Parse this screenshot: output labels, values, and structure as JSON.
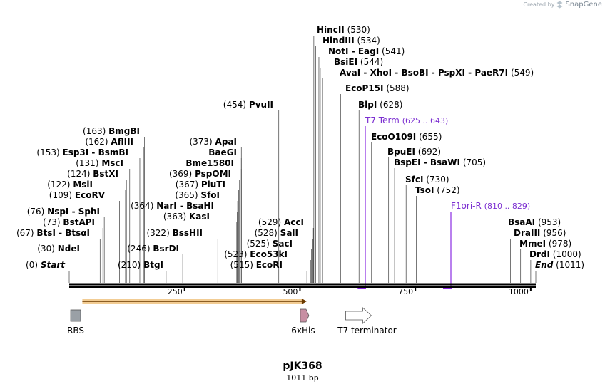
{
  "credit": {
    "prefix": "Created by",
    "brand": "SnapGene"
  },
  "plasmid": {
    "name": "pJK368",
    "length_label": "1011 bp",
    "length": 1011
  },
  "ruler": {
    "ticks": [
      {
        "pos": 250,
        "label": "250"
      },
      {
        "pos": 500,
        "label": "500"
      },
      {
        "pos": 750,
        "label": "750"
      },
      {
        "pos": 1000,
        "label": "1000"
      }
    ]
  },
  "sites": [
    {
      "pos": 0,
      "posLabel": "(0)",
      "names": [
        "Start"
      ],
      "style": "italic"
    },
    {
      "pos": 30,
      "posLabel": "(30)",
      "names": [
        "NdeI"
      ]
    },
    {
      "pos": 67,
      "posLabel": "(67)",
      "names": [
        "BtsI",
        "BtsαI"
      ]
    },
    {
      "pos": 73,
      "posLabel": "(73)",
      "names": [
        "BstAPI"
      ]
    },
    {
      "pos": 76,
      "posLabel": "(76)",
      "names": [
        "NspI",
        "SphI"
      ]
    },
    {
      "pos": 109,
      "posLabel": "(109)",
      "names": [
        "EcoRV"
      ]
    },
    {
      "pos": 122,
      "posLabel": "(122)",
      "names": [
        "MslI"
      ]
    },
    {
      "pos": 124,
      "posLabel": "(124)",
      "names": [
        "BstXI"
      ]
    },
    {
      "pos": 131,
      "posLabel": "(131)",
      "names": [
        "MscI"
      ]
    },
    {
      "pos": 153,
      "posLabel": "(153)",
      "names": [
        "Esp3I",
        "BsmBI"
      ]
    },
    {
      "pos": 162,
      "posLabel": "(162)",
      "names": [
        "AflIII"
      ]
    },
    {
      "pos": 163,
      "posLabel": "(163)",
      "names": [
        "BmgBI"
      ]
    },
    {
      "pos": 210,
      "posLabel": "(210)",
      "names": [
        "BtgI"
      ]
    },
    {
      "pos": 246,
      "posLabel": "(246)",
      "names": [
        "BsrDI"
      ]
    },
    {
      "pos": 322,
      "posLabel": "(322)",
      "names": [
        "BssHII"
      ]
    },
    {
      "pos": 363,
      "posLabel": "(363)",
      "names": [
        "KasI"
      ]
    },
    {
      "pos": 364,
      "posLabel": "(364)",
      "names": [
        "NarI",
        "BsaHI"
      ]
    },
    {
      "pos": 365,
      "posLabel": "(365)",
      "names": [
        "SfoI"
      ]
    },
    {
      "pos": 367,
      "posLabel": "(367)",
      "names": [
        "PluTI"
      ]
    },
    {
      "pos": 369,
      "posLabel": "(369)",
      "names": [
        "PspOMI"
      ]
    },
    {
      "pos": 373,
      "posLabel": "",
      "names": [
        "Bme1580I"
      ]
    },
    {
      "pos": 373,
      "posLabel": "",
      "names": [
        "BaeGI"
      ]
    },
    {
      "pos": 373,
      "posLabel": "(373)",
      "names": [
        "ApaI"
      ]
    },
    {
      "pos": 454,
      "posLabel": "(454)",
      "names": [
        "PvuII"
      ]
    },
    {
      "pos": 515,
      "posLabel": "(515)",
      "names": [
        "EcoRI"
      ]
    },
    {
      "pos": 523,
      "posLabel": "(523)",
      "names": [
        "Eco53kI"
      ]
    },
    {
      "pos": 525,
      "posLabel": "(525)",
      "names": [
        "SacI"
      ]
    },
    {
      "pos": 528,
      "posLabel": "(528)",
      "names": [
        "SalI"
      ]
    },
    {
      "pos": 529,
      "posLabel": "(529)",
      "names": [
        "AccI"
      ]
    },
    {
      "pos": 530,
      "posLabel": "(530)",
      "names": [
        "HincII"
      ]
    },
    {
      "pos": 534,
      "posLabel": "(534)",
      "names": [
        "HindIII"
      ]
    },
    {
      "pos": 541,
      "posLabel": "(541)",
      "names": [
        "NotI",
        "EagI"
      ]
    },
    {
      "pos": 544,
      "posLabel": "(544)",
      "names": [
        "BsiEI"
      ]
    },
    {
      "pos": 549,
      "posLabel": "(549)",
      "names": [
        "AvaI",
        "XhoI",
        "BsoBI",
        "PspXI",
        "PaeR7I"
      ]
    },
    {
      "pos": 588,
      "posLabel": "(588)",
      "names": [
        "EcoP15I"
      ]
    },
    {
      "pos": 628,
      "posLabel": "(628)",
      "names": [
        "BlpI"
      ]
    },
    {
      "pos": 655,
      "posLabel": "(655)",
      "names": [
        "EcoO109I"
      ]
    },
    {
      "pos": 692,
      "posLabel": "(692)",
      "names": [
        "BpuEI"
      ]
    },
    {
      "pos": 705,
      "posLabel": "(705)",
      "names": [
        "BspEI",
        "BsaWI"
      ]
    },
    {
      "pos": 730,
      "posLabel": "(730)",
      "names": [
        "SfcI"
      ]
    },
    {
      "pos": 752,
      "posLabel": "(752)",
      "names": [
        "TsoI"
      ]
    },
    {
      "pos": 953,
      "posLabel": "(953)",
      "names": [
        "BsaAI"
      ]
    },
    {
      "pos": 956,
      "posLabel": "(956)",
      "names": [
        "DraIII"
      ]
    },
    {
      "pos": 978,
      "posLabel": "(978)",
      "names": [
        "MmeI"
      ]
    },
    {
      "pos": 1000,
      "posLabel": "(1000)",
      "names": [
        "DrdI"
      ]
    },
    {
      "pos": 1011,
      "posLabel": "(1011)",
      "names": [
        "End"
      ],
      "style": "italic"
    }
  ],
  "features": [
    {
      "name": "T7 Term",
      "range": "(625 .. 643)",
      "start": 625,
      "end": 643,
      "color": "#8a2be2"
    },
    {
      "name": "F1ori-R",
      "range": "(810 .. 829)",
      "start": 810,
      "end": 829,
      "color": "#8a2be2"
    }
  ],
  "orf": {
    "start": 30,
    "end": 510,
    "color": "#e8a33b"
  },
  "track": [
    {
      "name": "RBS",
      "pos": 14,
      "shape": "box",
      "color": "#9aa0a6"
    },
    {
      "name": "6xHis",
      "pos": 510,
      "shape": "arrow",
      "color": "#c78fa3"
    },
    {
      "name": "T7 terminator",
      "pos": 633,
      "shape": "arrow-outline",
      "color": "#ffffff"
    }
  ]
}
